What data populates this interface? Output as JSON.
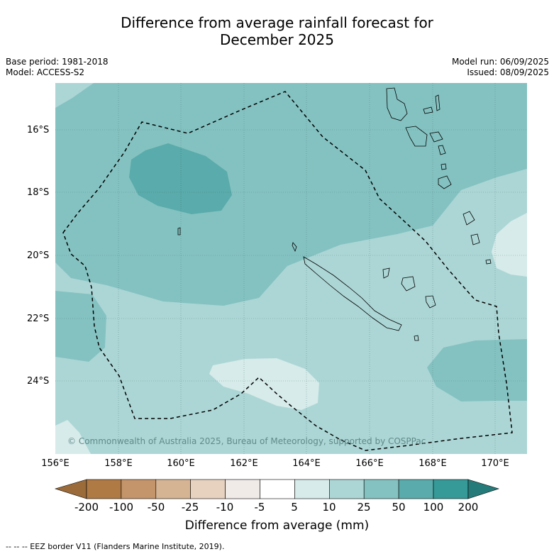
{
  "title_line1": "Difference from average rainfall forecast for",
  "title_line2": "December 2025",
  "meta": {
    "base_period": "Base period: 1981-2018",
    "model": "Model: ACCESS-S2",
    "model_run": "Model run: 06/09/2025",
    "issued": "Issued: 08/09/2025"
  },
  "lat_labels": [
    "16°S",
    "18°S",
    "20°S",
    "22°S",
    "24°S"
  ],
  "lon_labels": [
    "156°E",
    "158°E",
    "160°E",
    "162°E",
    "164°E",
    "166°E",
    "168°E",
    "170°E"
  ],
  "copyright": "© Commonwealth of Australia 2025, Bureau of Meteorology, supported by COSPPac",
  "colorbar": {
    "label": "Difference from average (mm)",
    "ticks": [
      "-200",
      "-100",
      "-50",
      "-25",
      "-10",
      "-5",
      "5",
      "10",
      "25",
      "50",
      "100",
      "200"
    ],
    "colors": [
      "#9b6b3a",
      "#b07a45",
      "#c4956a",
      "#d5b494",
      "#e6d2bf",
      "#f0ebe7",
      "#ffffff",
      "#d6ebea",
      "#acd6d5",
      "#84c2c1",
      "#5aabab",
      "#369a98",
      "#257b79"
    ]
  },
  "footnote": "--  --  -- EEZ border V11 (Flanders Marine Institute, 2019).",
  "legend_colors": {
    "level_10_25": "#acd6d5",
    "level_25_50": "#84c2c1",
    "level_50_100": "#5aabab",
    "level_5_10": "#d6ebea"
  }
}
